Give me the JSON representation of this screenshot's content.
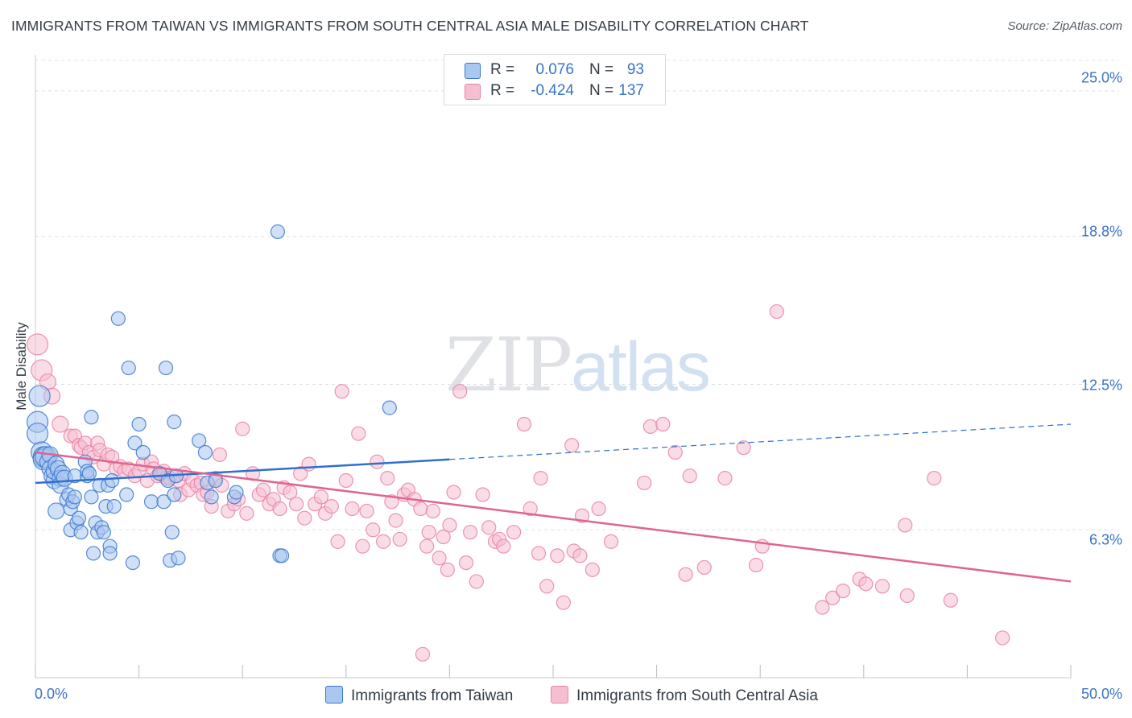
{
  "title": "IMMIGRANTS FROM TAIWAN VS IMMIGRANTS FROM SOUTH CENTRAL ASIA MALE DISABILITY CORRELATION CHART",
  "source": "Source: ZipAtlas.com",
  "watermark": {
    "zip": "ZIP",
    "atlas": "atlas"
  },
  "legend_top": [
    {
      "r_label": "R =",
      "r_value": "0.076",
      "n_label": "N =",
      "n_value": "93"
    },
    {
      "r_label": "R =",
      "r_value": "-0.424",
      "n_label": "N =",
      "n_value": "137"
    }
  ],
  "colors": {
    "taiwan_fill": "#a9c7ef",
    "taiwan_stroke": "#3a78d0",
    "taiwan_line": "#2f6fcf",
    "sca_fill": "#f6bfd1",
    "sca_stroke": "#e882a6",
    "sca_line": "#e0648f",
    "grid": "#dde0e4",
    "tick_text": "#3a73c6"
  },
  "chart_data": {
    "type": "scatter",
    "title": "IMMIGRANTS FROM TAIWAN VS IMMIGRANTS FROM SOUTH CENTRAL ASIA MALE DISABILITY CORRELATION CHART",
    "xlabel": "",
    "ylabel": "Male Disability",
    "xlim": [
      0,
      50
    ],
    "ylim": [
      0,
      26.3
    ],
    "x_tick_labels": [
      "0.0%",
      "50.0%"
    ],
    "y_ticks": [
      6.3,
      12.5,
      18.8,
      25.0
    ],
    "y_tick_labels": [
      "6.3%",
      "12.5%",
      "18.8%",
      "25.0%"
    ],
    "grid": "horizontal dashed",
    "legend_position": "top-center and bottom",
    "series": [
      {
        "name": "Immigrants from Taiwan",
        "r": 0.076,
        "n": 93,
        "trend": {
          "x0": 0,
          "y0": 8.3,
          "x1": 20,
          "y1": 9.3,
          "x_dash_end": 50,
          "y_dash_end": 10.8
        },
        "points": [
          [
            0.1,
            10.9
          ],
          [
            0.1,
            10.4
          ],
          [
            0.2,
            12.0
          ],
          [
            0.3,
            9.6
          ],
          [
            0.4,
            9.4
          ],
          [
            0.4,
            9.3
          ],
          [
            0.5,
            9.4
          ],
          [
            0.6,
            9.2
          ],
          [
            0.7,
            9.5
          ],
          [
            0.7,
            8.9
          ],
          [
            0.8,
            8.6
          ],
          [
            0.9,
            8.4
          ],
          [
            0.9,
            8.8
          ],
          [
            1.0,
            9.1
          ],
          [
            1.0,
            7.1
          ],
          [
            1.1,
            8.9
          ],
          [
            1.2,
            8.5
          ],
          [
            1.2,
            8.2
          ],
          [
            1.3,
            8.7
          ],
          [
            1.4,
            8.5
          ],
          [
            1.5,
            7.6
          ],
          [
            1.6,
            7.8
          ],
          [
            1.7,
            7.2
          ],
          [
            1.7,
            6.3
          ],
          [
            1.8,
            7.5
          ],
          [
            1.9,
            8.6
          ],
          [
            1.9,
            7.7
          ],
          [
            2.0,
            6.6
          ],
          [
            2.1,
            6.8
          ],
          [
            2.2,
            6.2
          ],
          [
            2.4,
            9.2
          ],
          [
            2.5,
            8.6
          ],
          [
            2.5,
            8.8
          ],
          [
            2.6,
            8.7
          ],
          [
            2.7,
            11.1
          ],
          [
            2.7,
            7.7
          ],
          [
            2.8,
            5.3
          ],
          [
            2.9,
            6.6
          ],
          [
            3.0,
            6.2
          ],
          [
            3.1,
            8.2
          ],
          [
            3.2,
            6.4
          ],
          [
            3.3,
            6.2
          ],
          [
            3.4,
            7.3
          ],
          [
            3.5,
            8.2
          ],
          [
            3.6,
            5.6
          ],
          [
            3.6,
            5.3
          ],
          [
            3.7,
            8.4
          ],
          [
            3.8,
            7.3
          ],
          [
            4.0,
            15.3
          ],
          [
            4.4,
            7.8
          ],
          [
            4.5,
            13.2
          ],
          [
            4.7,
            4.9
          ],
          [
            4.8,
            10.0
          ],
          [
            5.0,
            10.8
          ],
          [
            5.2,
            9.6
          ],
          [
            5.6,
            7.5
          ],
          [
            6.0,
            8.7
          ],
          [
            6.2,
            7.5
          ],
          [
            6.3,
            13.2
          ],
          [
            6.4,
            8.4
          ],
          [
            6.5,
            5.0
          ],
          [
            6.6,
            6.2
          ],
          [
            6.7,
            7.8
          ],
          [
            6.7,
            10.9
          ],
          [
            6.8,
            8.6
          ],
          [
            6.9,
            5.1
          ],
          [
            7.9,
            10.1
          ],
          [
            8.2,
            9.6
          ],
          [
            8.3,
            8.3
          ],
          [
            8.5,
            7.7
          ],
          [
            8.7,
            8.4
          ],
          [
            9.6,
            7.7
          ],
          [
            9.7,
            7.9
          ],
          [
            11.8,
            5.2
          ],
          [
            11.9,
            5.2
          ],
          [
            11.7,
            19.0
          ],
          [
            17.1,
            11.5
          ]
        ]
      },
      {
        "name": "Immigrants from South Central Asia",
        "r": -0.424,
        "n": 137,
        "trend": {
          "x0": 0,
          "y0": 9.6,
          "x1": 50,
          "y1": 4.1
        },
        "points": [
          [
            0.1,
            14.2
          ],
          [
            0.3,
            13.1
          ],
          [
            0.6,
            12.6
          ],
          [
            0.8,
            12.0
          ],
          [
            1.2,
            10.8
          ],
          [
            1.7,
            10.3
          ],
          [
            1.9,
            10.3
          ],
          [
            2.1,
            9.9
          ],
          [
            2.2,
            9.8
          ],
          [
            2.4,
            10.0
          ],
          [
            2.6,
            9.6
          ],
          [
            2.8,
            9.4
          ],
          [
            3.0,
            10.0
          ],
          [
            3.1,
            9.7
          ],
          [
            3.3,
            9.1
          ],
          [
            3.5,
            9.5
          ],
          [
            3.7,
            9.4
          ],
          [
            3.9,
            8.9
          ],
          [
            4.1,
            9.0
          ],
          [
            4.3,
            8.8
          ],
          [
            4.5,
            8.9
          ],
          [
            4.8,
            8.6
          ],
          [
            5.0,
            8.8
          ],
          [
            5.2,
            9.1
          ],
          [
            5.4,
            8.4
          ],
          [
            5.6,
            9.2
          ],
          [
            5.7,
            8.9
          ],
          [
            5.9,
            8.6
          ],
          [
            6.1,
            8.7
          ],
          [
            6.2,
            8.8
          ],
          [
            6.3,
            8.5
          ],
          [
            6.5,
            8.5
          ],
          [
            6.7,
            8.6
          ],
          [
            6.9,
            8.4
          ],
          [
            7.0,
            7.8
          ],
          [
            7.2,
            8.7
          ],
          [
            7.4,
            8.0
          ],
          [
            7.6,
            8.4
          ],
          [
            7.8,
            8.2
          ],
          [
            8.0,
            8.3
          ],
          [
            8.1,
            7.8
          ],
          [
            8.3,
            7.9
          ],
          [
            8.5,
            7.3
          ],
          [
            8.7,
            8.5
          ],
          [
            8.9,
            9.5
          ],
          [
            9.0,
            8.2
          ],
          [
            9.3,
            7.1
          ],
          [
            9.6,
            7.4
          ],
          [
            9.8,
            7.6
          ],
          [
            10.0,
            10.6
          ],
          [
            10.2,
            7.0
          ],
          [
            10.5,
            8.7
          ],
          [
            10.8,
            7.8
          ],
          [
            11.0,
            8.0
          ],
          [
            11.3,
            7.4
          ],
          [
            11.5,
            7.6
          ],
          [
            11.8,
            7.2
          ],
          [
            12.0,
            8.1
          ],
          [
            12.3,
            7.9
          ],
          [
            12.6,
            7.4
          ],
          [
            12.8,
            8.7
          ],
          [
            13.0,
            6.8
          ],
          [
            13.2,
            9.1
          ],
          [
            13.5,
            7.4
          ],
          [
            13.8,
            7.7
          ],
          [
            14.0,
            7.0
          ],
          [
            14.3,
            7.3
          ],
          [
            14.6,
            5.8
          ],
          [
            14.8,
            12.2
          ],
          [
            15.0,
            8.4
          ],
          [
            15.3,
            7.2
          ],
          [
            15.6,
            10.4
          ],
          [
            15.8,
            5.6
          ],
          [
            16.0,
            7.1
          ],
          [
            16.3,
            6.3
          ],
          [
            16.5,
            9.2
          ],
          [
            16.8,
            5.8
          ],
          [
            17.0,
            8.5
          ],
          [
            17.2,
            7.5
          ],
          [
            17.4,
            6.7
          ],
          [
            17.6,
            5.9
          ],
          [
            17.8,
            7.8
          ],
          [
            18.0,
            8.0
          ],
          [
            18.3,
            7.6
          ],
          [
            18.6,
            7.2
          ],
          [
            18.9,
            5.6
          ],
          [
            19.0,
            6.2
          ],
          [
            19.2,
            7.1
          ],
          [
            19.5,
            5.1
          ],
          [
            19.7,
            6.0
          ],
          [
            19.9,
            4.6
          ],
          [
            20.0,
            6.5
          ],
          [
            20.2,
            7.9
          ],
          [
            20.5,
            12.2
          ],
          [
            20.8,
            4.9
          ],
          [
            21.0,
            6.2
          ],
          [
            21.3,
            4.1
          ],
          [
            21.6,
            7.8
          ],
          [
            21.9,
            6.4
          ],
          [
            22.2,
            5.8
          ],
          [
            22.4,
            5.9
          ],
          [
            22.6,
            5.6
          ],
          [
            23.1,
            6.2
          ],
          [
            23.6,
            10.8
          ],
          [
            23.9,
            7.2
          ],
          [
            24.3,
            5.3
          ],
          [
            24.4,
            8.5
          ],
          [
            24.7,
            3.9
          ],
          [
            25.2,
            5.2
          ],
          [
            25.5,
            3.2
          ],
          [
            25.9,
            9.9
          ],
          [
            26.0,
            5.4
          ],
          [
            26.3,
            5.2
          ],
          [
            26.4,
            6.9
          ],
          [
            26.9,
            4.6
          ],
          [
            27.2,
            7.2
          ],
          [
            27.8,
            5.8
          ],
          [
            29.4,
            8.3
          ],
          [
            29.7,
            10.7
          ],
          [
            30.3,
            10.8
          ],
          [
            30.9,
            9.6
          ],
          [
            31.4,
            4.4
          ],
          [
            31.6,
            8.6
          ],
          [
            32.3,
            4.7
          ],
          [
            33.3,
            8.5
          ],
          [
            34.2,
            9.8
          ],
          [
            34.8,
            4.8
          ],
          [
            35.1,
            5.6
          ],
          [
            35.8,
            15.6
          ],
          [
            38.0,
            3.0
          ],
          [
            38.5,
            3.4
          ],
          [
            39.0,
            3.7
          ],
          [
            39.8,
            4.2
          ],
          [
            40.1,
            4.0
          ],
          [
            40.9,
            3.9
          ],
          [
            42.0,
            6.5
          ],
          [
            42.1,
            3.5
          ],
          [
            43.4,
            8.5
          ],
          [
            44.2,
            3.3
          ],
          [
            46.7,
            1.7
          ],
          [
            18.7,
            1.0
          ]
        ]
      }
    ]
  },
  "legend_bottom": [
    {
      "label": "Immigrants from Taiwan"
    },
    {
      "label": "Immigrants from South Central Asia"
    }
  ]
}
